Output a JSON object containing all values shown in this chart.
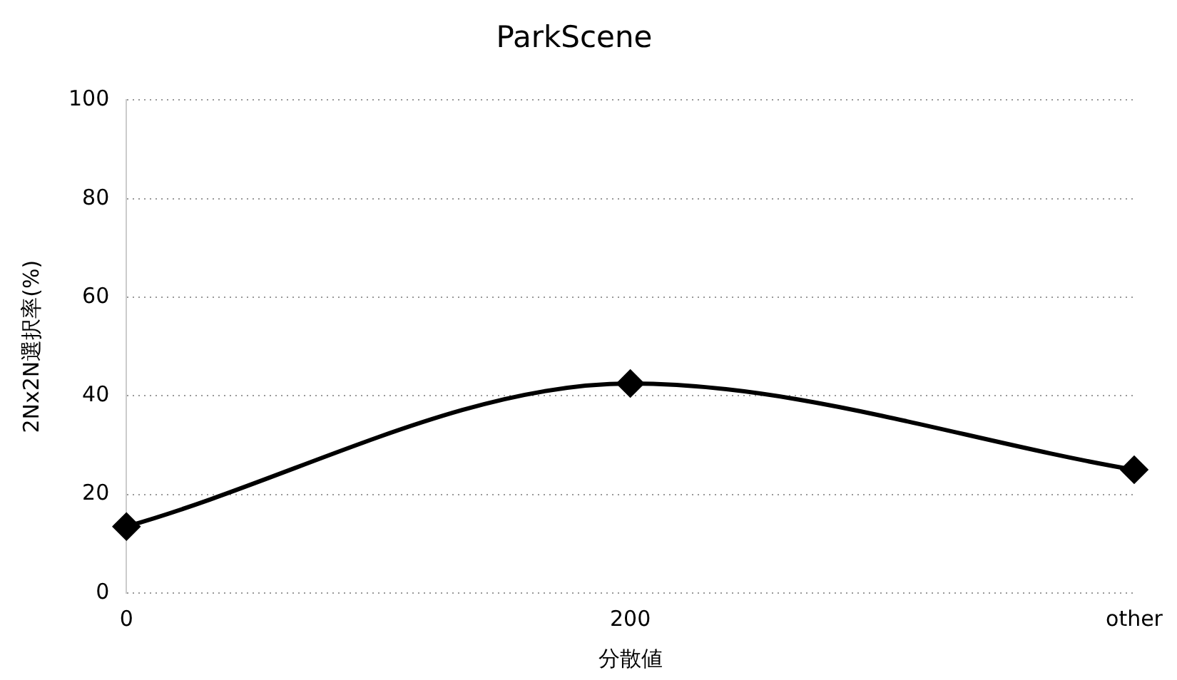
{
  "chart_data": {
    "type": "line",
    "title": "ParkScene",
    "xlabel": "分散値",
    "ylabel": "2Nx2N選択率(%)",
    "categories": [
      "0",
      "200",
      "other"
    ],
    "series": [
      {
        "color": "#000000",
        "values": [
          13.5,
          42.5,
          25
        ]
      }
    ],
    "ylim": [
      0,
      100
    ],
    "yticks": [
      0,
      20,
      40,
      60,
      80,
      100
    ],
    "grid": "y",
    "legend": false,
    "marker": "diamond",
    "line_style": "solid"
  }
}
